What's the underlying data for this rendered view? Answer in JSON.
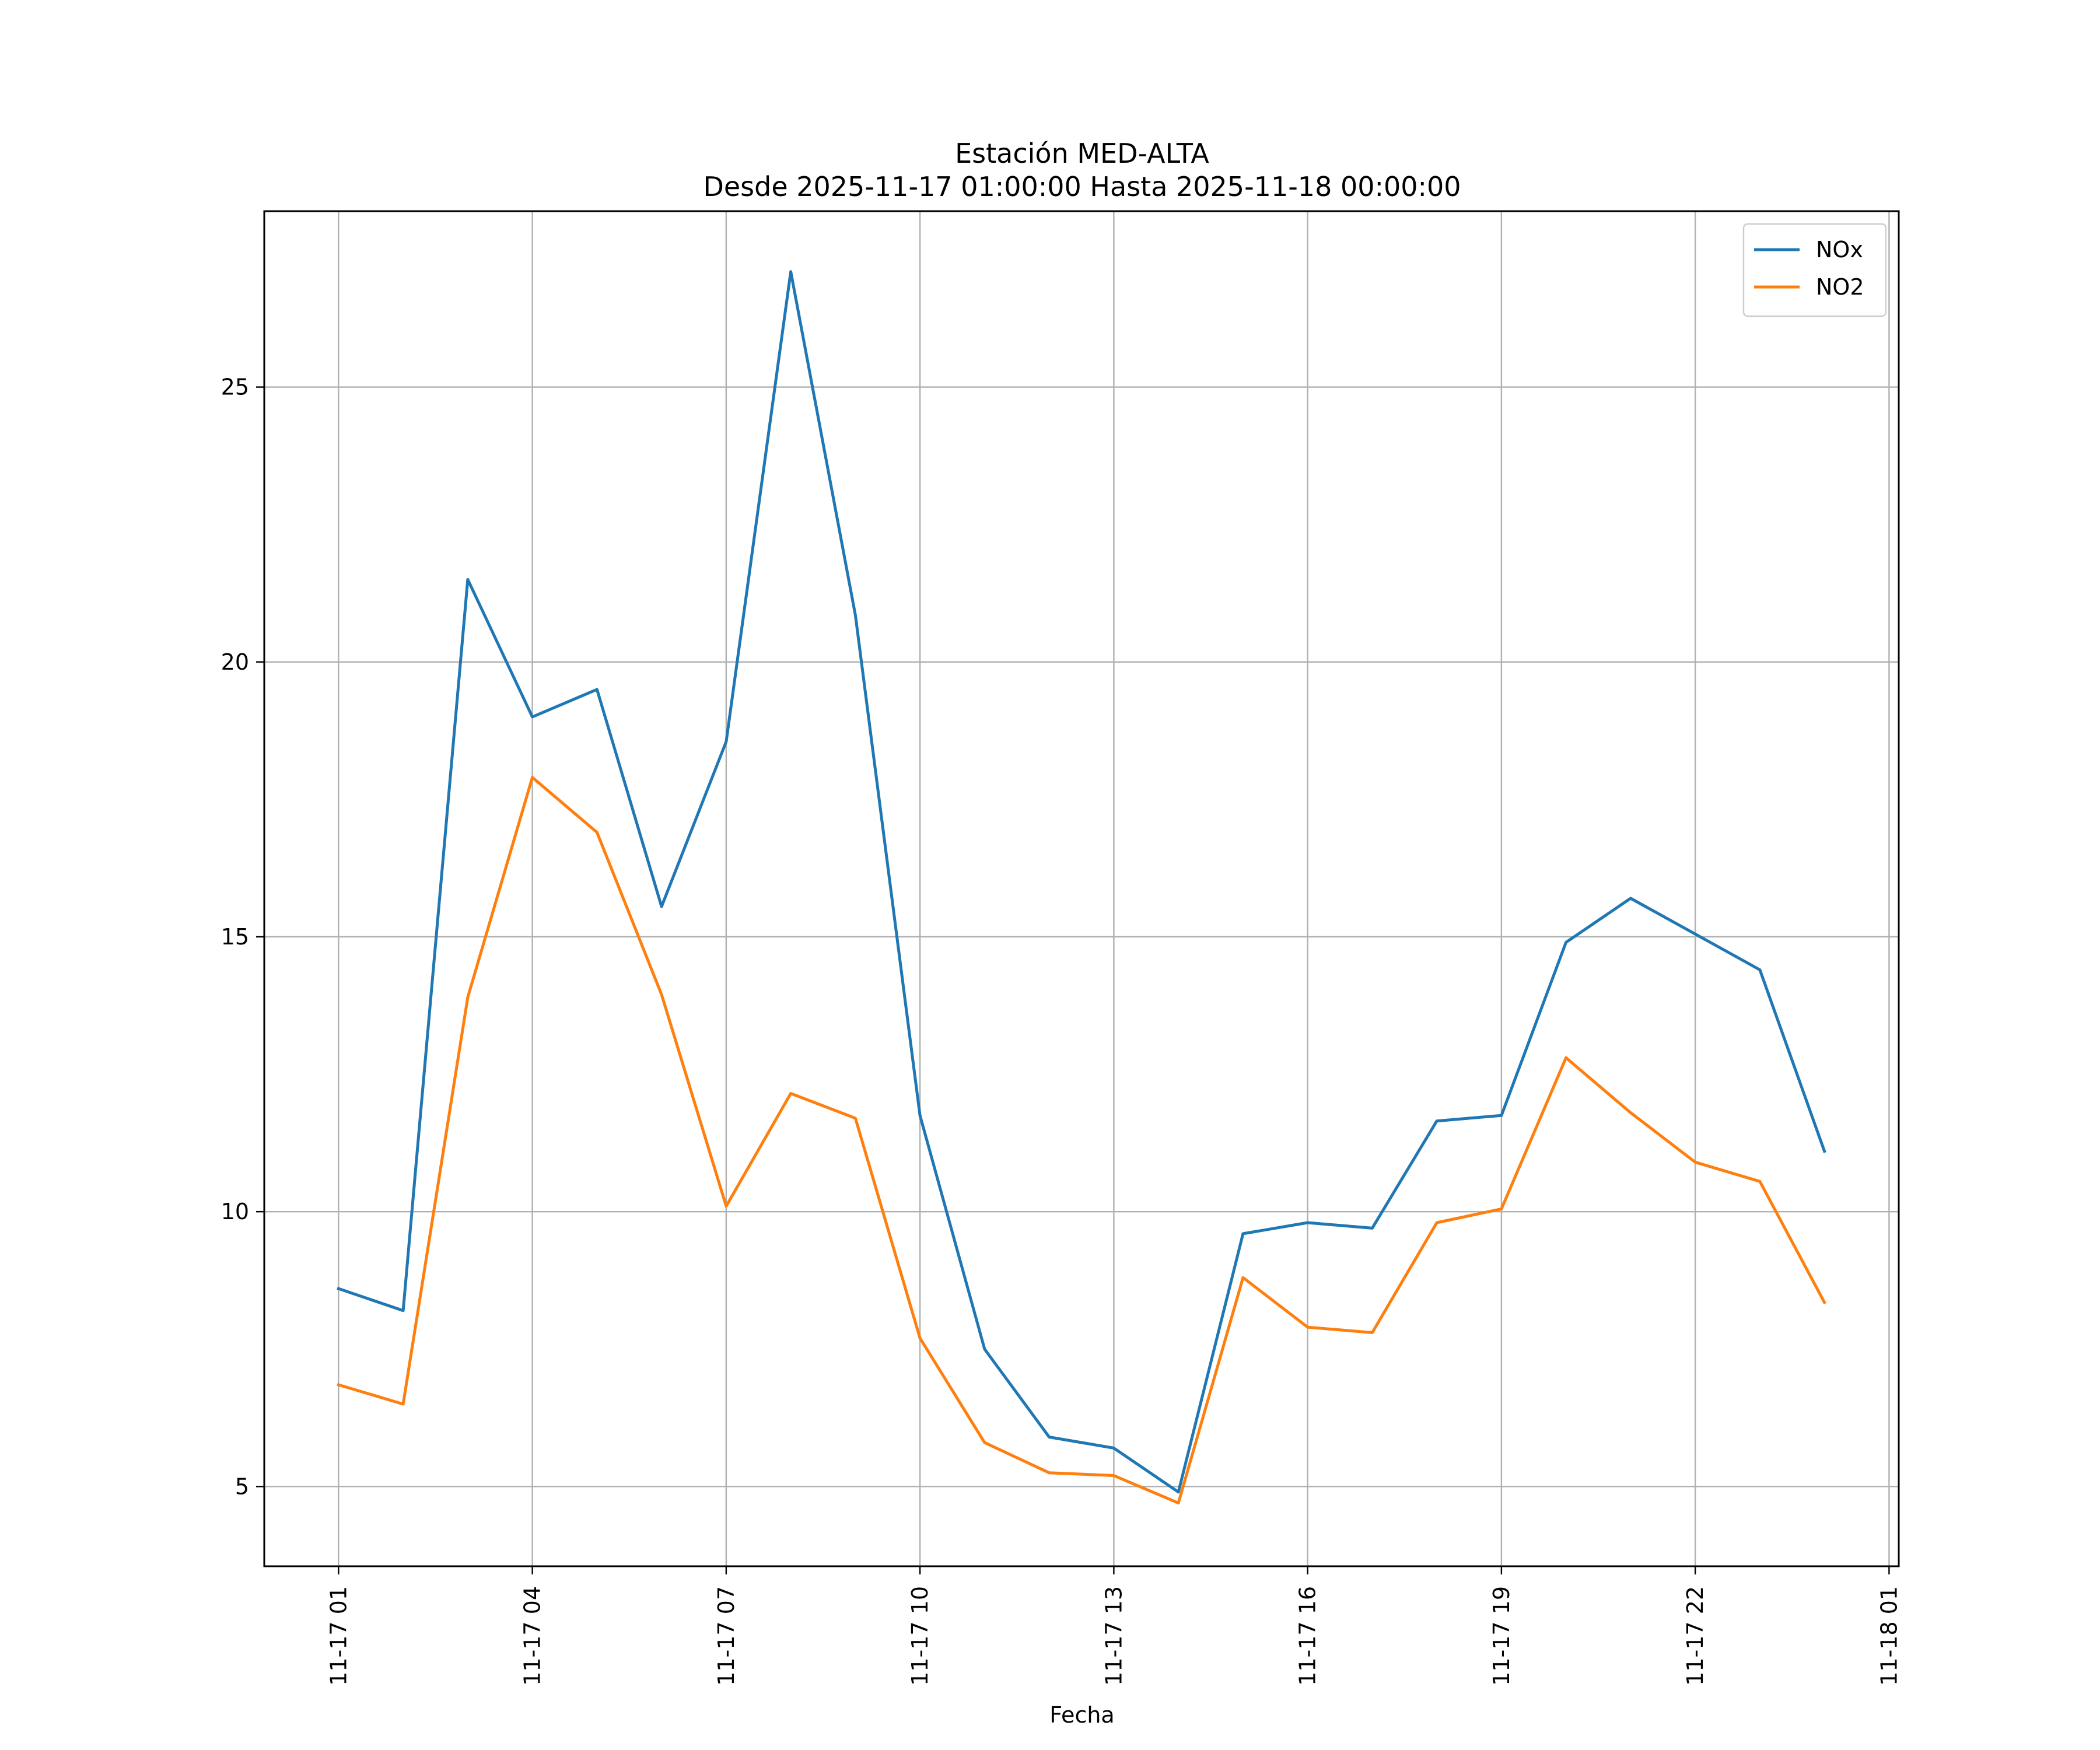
{
  "chart_data": {
    "type": "line",
    "title": "Estación MED-ALTA",
    "subtitle": "Desde 2025-11-17 01:00:00 Hasta 2025-11-18 00:00:00",
    "xlabel": "Fecha",
    "ylabel": "",
    "x": [
      "2025-11-17 01:00",
      "2025-11-17 02:00",
      "2025-11-17 03:00",
      "2025-11-17 04:00",
      "2025-11-17 05:00",
      "2025-11-17 06:00",
      "2025-11-17 07:00",
      "2025-11-17 08:00",
      "2025-11-17 09:00",
      "2025-11-17 10:00",
      "2025-11-17 11:00",
      "2025-11-17 12:00",
      "2025-11-17 13:00",
      "2025-11-17 14:00",
      "2025-11-17 15:00",
      "2025-11-17 16:00",
      "2025-11-17 17:00",
      "2025-11-17 18:00",
      "2025-11-17 19:00",
      "2025-11-17 20:00",
      "2025-11-17 21:00",
      "2025-11-17 22:00",
      "2025-11-17 23:00",
      "2025-11-18 00:00"
    ],
    "xlim": [
      "2025-11-16 23:51",
      "2025-11-18 01:09"
    ],
    "ylim": [
      3.55,
      28.2
    ],
    "xticks": [
      "2025-11-17 01:00",
      "2025-11-17 04:00",
      "2025-11-17 07:00",
      "2025-11-17 10:00",
      "2025-11-17 13:00",
      "2025-11-17 16:00",
      "2025-11-17 19:00",
      "2025-11-17 22:00",
      "2025-11-18 01:00"
    ],
    "xtick_labels": [
      "11-17 01",
      "11-17 04",
      "11-17 07",
      "11-17 10",
      "11-17 13",
      "11-17 16",
      "11-17 19",
      "11-17 22",
      "11-18 01"
    ],
    "yticks": [
      5,
      10,
      15,
      20,
      25
    ],
    "ytick_labels": [
      "5",
      "10",
      "15",
      "20",
      "25"
    ],
    "grid": true,
    "legend_position": "top-right",
    "series": [
      {
        "name": "NOx",
        "color": "#1f77b4",
        "values": [
          8.6,
          8.2,
          21.5,
          19.0,
          19.5,
          15.55,
          18.55,
          27.1,
          20.85,
          11.75,
          7.5,
          5.9,
          5.7,
          4.9,
          9.6,
          9.8,
          9.7,
          11.65,
          11.75,
          14.9,
          15.7,
          15.05,
          14.4,
          11.1
        ]
      },
      {
        "name": "NO2",
        "color": "#ff7f0e",
        "values": [
          6.85,
          6.5,
          13.9,
          17.9,
          16.9,
          13.95,
          10.1,
          12.15,
          11.7,
          7.7,
          5.8,
          5.25,
          5.2,
          4.7,
          8.8,
          7.9,
          7.8,
          9.8,
          10.05,
          12.8,
          11.8,
          10.9,
          10.55,
          8.35
        ]
      }
    ]
  }
}
